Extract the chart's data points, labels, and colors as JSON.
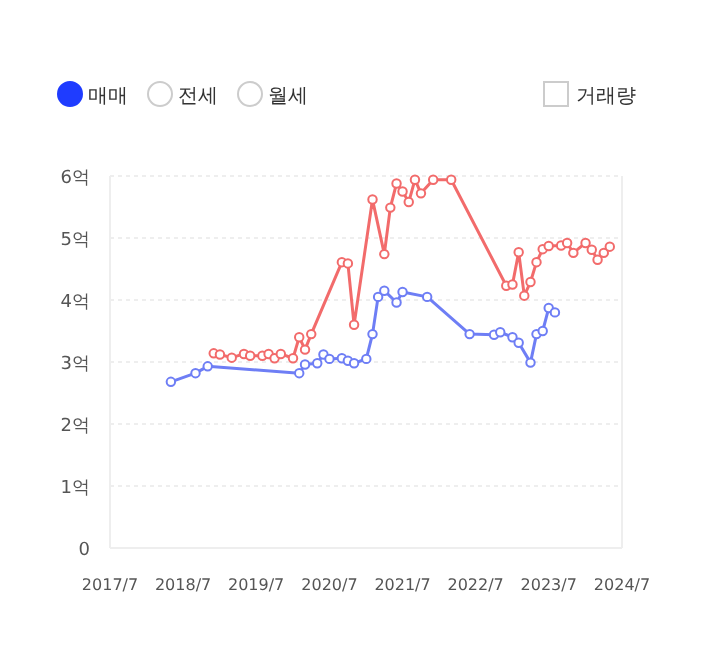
{
  "chart_data": {
    "type": "line",
    "marker": "circle",
    "grid": "y",
    "annotations": [
      "매매",
      "전세",
      "월세",
      "거래량"
    ],
    "xlim": [
      "2017-07",
      "2024-07"
    ],
    "xticks": [
      {
        "value": "2017-07",
        "label": "2017/7"
      },
      {
        "value": "2018-07",
        "label": "2018/7"
      },
      {
        "value": "2019-07",
        "label": "2019/7"
      },
      {
        "value": "2020-07",
        "label": "2020/7"
      },
      {
        "value": "2021-07",
        "label": "2021/7"
      },
      {
        "value": "2022-07",
        "label": "2022/7"
      },
      {
        "value": "2023-07",
        "label": "2023/7"
      },
      {
        "value": "2024-07",
        "label": "2024/7"
      }
    ],
    "ylim": [
      0,
      6
    ],
    "yticks": [
      0,
      {
        "value": 1,
        "label": "1억"
      },
      {
        "value": 2,
        "label": "2억"
      },
      {
        "value": 3,
        "label": "3억"
      },
      {
        "value": 4,
        "label": "4억"
      },
      {
        "value": 5,
        "label": "5억"
      },
      {
        "value": 6,
        "label": "6억"
      }
    ],
    "series": [
      {
        "color": "#f26b6b",
        "x": [
          "2018-12",
          "2019-01",
          "2019-03",
          "2019-05",
          "2019-06",
          "2019-08",
          "2019-09",
          "2019-10",
          "2019-11",
          "2020-01",
          "2020-02",
          "2020-03",
          "2020-04",
          "2020-09",
          "2020-10",
          "2020-11",
          "2021-02",
          "2021-04",
          "2021-05",
          "2021-06",
          "2021-07",
          "2021-08",
          "2021-09",
          "2021-10",
          "2021-12",
          "2022-03",
          "2022-12",
          "2023-01",
          "2023-02",
          "2023-03",
          "2023-04",
          "2023-05",
          "2023-06",
          "2023-07",
          "2023-09",
          "2023-10",
          "2023-11",
          "2024-01",
          "2024-02",
          "2024-03",
          "2024-04",
          "2024-05"
        ],
        "values": [
          3.14,
          3.12,
          3.07,
          3.13,
          3.1,
          3.1,
          3.13,
          3.06,
          3.13,
          3.06,
          3.4,
          3.2,
          3.45,
          4.61,
          4.59,
          3.6,
          5.62,
          4.74,
          5.49,
          5.88,
          5.75,
          5.58,
          5.94,
          5.72,
          5.94,
          5.94,
          4.23,
          4.25,
          4.77,
          4.07,
          4.29,
          4.61,
          4.82,
          4.87,
          4.88,
          4.92,
          4.76,
          4.92,
          4.81,
          4.65,
          4.76,
          4.86
        ]
      },
      {
        "color": "#6e7ef5",
        "x": [
          "2018-05",
          "2018-09",
          "2018-11",
          "2020-02",
          "2020-03",
          "2020-05",
          "2020-06",
          "2020-07",
          "2020-09",
          "2020-10",
          "2020-11",
          "2021-01",
          "2021-02",
          "2021-03",
          "2021-04",
          "2021-06",
          "2021-07",
          "2021-11",
          "2022-06",
          "2022-10",
          "2022-11",
          "2023-01",
          "2023-02",
          "2023-04",
          "2023-05",
          "2023-06",
          "2023-07",
          "2023-08"
        ],
        "values": [
          2.68,
          2.82,
          2.93,
          2.82,
          2.96,
          2.98,
          3.12,
          3.05,
          3.06,
          3.02,
          2.98,
          3.05,
          3.45,
          4.05,
          4.15,
          3.96,
          4.13,
          4.05,
          3.45,
          3.44,
          3.48,
          3.4,
          3.31,
          2.99,
          3.45,
          3.5,
          3.87,
          3.8
        ]
      }
    ]
  }
}
